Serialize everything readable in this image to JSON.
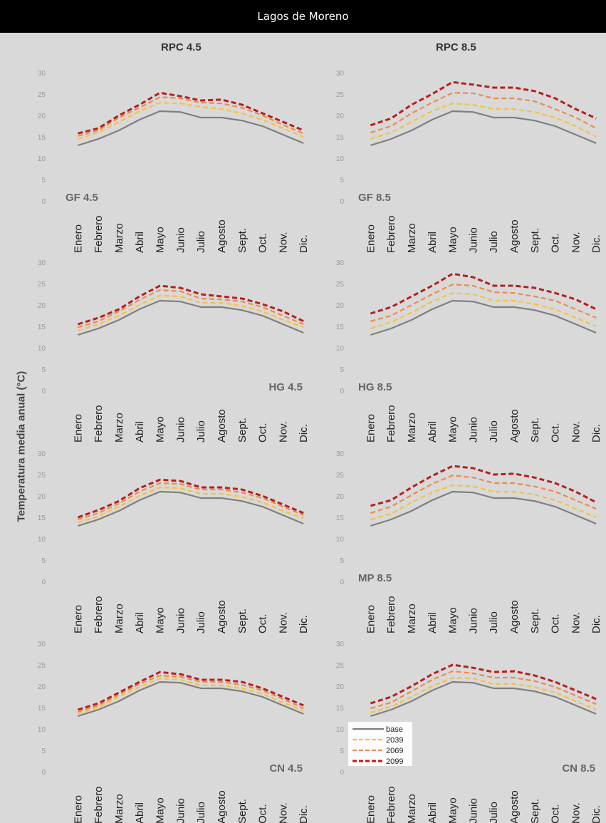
{
  "header": {
    "title": "Lagos de Moreno"
  },
  "columns": [
    "RPC 4.5",
    "RPC 8.5"
  ],
  "y_axis_label": "Temperatura media anual (°C)",
  "colors": {
    "base": "#7f7f7f",
    "2039": "#f5c242",
    "2069": "#ef8a4c",
    "2099": "#b81e1e"
  },
  "chart_data": [
    {
      "type": "line",
      "panel_label": "GF 4.5",
      "label_position": "left",
      "ylim": [
        0,
        30
      ],
      "yticks": [
        0,
        5,
        10,
        15,
        20,
        25,
        30
      ],
      "categories": [
        "Enero",
        "Febrero",
        "Marzo",
        "Abril",
        "Mayo",
        "Junio",
        "Julio",
        "Agosto",
        "Sept.",
        "Oct.",
        "Nov.",
        "Dic."
      ],
      "series": [
        {
          "name": "base",
          "values": [
            13,
            14.5,
            16.5,
            19,
            21,
            20.8,
            19.5,
            19.5,
            18.8,
            17.5,
            15.5,
            13.5
          ]
        },
        {
          "name": "2039",
          "values": [
            14.5,
            16,
            18.5,
            21,
            23,
            22.8,
            22,
            21.5,
            20.5,
            19,
            17,
            15
          ]
        },
        {
          "name": "2069",
          "values": [
            15.2,
            16.5,
            19.5,
            21.8,
            24.3,
            24,
            23,
            22.8,
            21.8,
            20,
            17.8,
            15.8
          ]
        },
        {
          "name": "2099",
          "values": [
            15.8,
            17,
            20,
            22.5,
            25.3,
            24.5,
            23.5,
            23.7,
            22.5,
            20.5,
            18.5,
            16.5
          ]
        }
      ]
    },
    {
      "type": "line",
      "panel_label": "GF 8.5",
      "label_position": "left",
      "ylim": [
        0,
        30
      ],
      "yticks": [
        0,
        5,
        10,
        15,
        20,
        25,
        30
      ],
      "categories": [
        "Enero",
        "Febrero",
        "Marzo",
        "Abril",
        "Mayo",
        "Junio",
        "Julio",
        "Agosto",
        "Sept.",
        "Oct.",
        "Nov.",
        "Dic."
      ],
      "series": [
        {
          "name": "base",
          "values": [
            13,
            14.5,
            16.5,
            19,
            21,
            20.8,
            19.5,
            19.5,
            18.8,
            17.5,
            15.5,
            13.5
          ]
        },
        {
          "name": "2039",
          "values": [
            14.5,
            16,
            18.5,
            21,
            22.8,
            22.5,
            21.5,
            21.5,
            20.8,
            19.5,
            17.5,
            15
          ]
        },
        {
          "name": "2069",
          "values": [
            16,
            17.5,
            20.5,
            23,
            25.3,
            25.2,
            24,
            24,
            23.3,
            21.5,
            19.5,
            17
          ]
        },
        {
          "name": "2099",
          "values": [
            17.7,
            19.3,
            22.5,
            25,
            27.8,
            27.2,
            26.5,
            26.5,
            25.7,
            24,
            21.5,
            19.3
          ]
        }
      ]
    },
    {
      "type": "line",
      "panel_label": "HG 4.5",
      "label_position": "right",
      "ylim": [
        0,
        30
      ],
      "yticks": [
        0,
        5,
        10,
        15,
        20,
        25,
        30
      ],
      "categories": [
        "Enero",
        "Febrero",
        "Marzo",
        "Abril",
        "Mayo",
        "Junio",
        "Julio",
        "Agosto",
        "Sept.",
        "Oct.",
        "Nov.",
        "Dic."
      ],
      "series": [
        {
          "name": "base",
          "values": [
            13,
            14.5,
            16.5,
            19,
            21,
            20.8,
            19.5,
            19.5,
            18.8,
            17.5,
            15.5,
            13.5
          ]
        },
        {
          "name": "2039",
          "values": [
            14,
            15.5,
            17.5,
            20,
            22.2,
            22,
            20.5,
            20.5,
            19.8,
            18.5,
            16.5,
            14.8
          ]
        },
        {
          "name": "2069",
          "values": [
            14.8,
            16.2,
            18.5,
            21.2,
            23.5,
            23.2,
            21.5,
            21.3,
            20.8,
            19.5,
            17.5,
            15.5
          ]
        },
        {
          "name": "2099",
          "values": [
            15.5,
            17,
            19,
            22,
            24.5,
            24,
            22.5,
            22,
            21.5,
            20.2,
            18.5,
            16.2
          ]
        }
      ]
    },
    {
      "type": "line",
      "panel_label": "HG 8.5",
      "label_position": "left",
      "ylim": [
        0,
        30
      ],
      "yticks": [
        0,
        5,
        10,
        15,
        20,
        25,
        30
      ],
      "categories": [
        "Enero",
        "Febrero",
        "Marzo",
        "Abril",
        "Mayo",
        "Junio",
        "Julio",
        "Agosto",
        "Sept.",
        "Oct.",
        "Nov.",
        "Dic."
      ],
      "series": [
        {
          "name": "base",
          "values": [
            13,
            14.5,
            16.5,
            19,
            21,
            20.8,
            19.5,
            19.5,
            18.8,
            17.5,
            15.5,
            13.5
          ]
        },
        {
          "name": "2039",
          "values": [
            14.5,
            16,
            18.2,
            20.8,
            22.8,
            22.5,
            21,
            21,
            20.2,
            19,
            17,
            15
          ]
        },
        {
          "name": "2069",
          "values": [
            16.2,
            17.5,
            20,
            22.5,
            24.8,
            24.5,
            23,
            22.8,
            22,
            21,
            19,
            17
          ]
        },
        {
          "name": "2099",
          "values": [
            18,
            19.5,
            22,
            24.5,
            27.3,
            26.5,
            24.5,
            24.5,
            24,
            22.8,
            21.3,
            19
          ]
        }
      ]
    },
    {
      "type": "line",
      "panel_label": "",
      "label_position": "left",
      "ylim": [
        0,
        30
      ],
      "yticks": [
        0,
        5,
        10,
        15,
        20,
        25,
        30
      ],
      "categories": [
        "Enero",
        "Febrero",
        "Marzo",
        "Abril",
        "Mayo",
        "Junio",
        "Julio",
        "Agosto",
        "Sept.",
        "Oct.",
        "Nov.",
        "Dic."
      ],
      "series": [
        {
          "name": "base",
          "values": [
            13,
            14.5,
            16.5,
            19,
            21,
            20.8,
            19.5,
            19.5,
            18.8,
            17.5,
            15.5,
            13.5
          ]
        },
        {
          "name": "2039",
          "values": [
            13.8,
            15.2,
            17.5,
            20,
            22,
            21.8,
            20.5,
            20.5,
            19.8,
            18.5,
            16.5,
            14.8
          ]
        },
        {
          "name": "2069",
          "values": [
            14.5,
            16,
            18.2,
            21,
            23,
            22.8,
            21.5,
            21.5,
            20.8,
            19.5,
            17.5,
            15.5
          ]
        },
        {
          "name": "2099",
          "values": [
            15,
            16.7,
            18.8,
            21.8,
            23.8,
            23.5,
            22,
            22,
            21.5,
            20,
            18,
            16
          ]
        }
      ]
    },
    {
      "type": "line",
      "panel_label": "MP 8.5",
      "label_position": "left",
      "ylim": [
        0,
        30
      ],
      "yticks": [
        0,
        5,
        10,
        15,
        20,
        25,
        30
      ],
      "categories": [
        "Enero",
        "Febrero",
        "Marzo",
        "Abril",
        "Mayo",
        "Junio",
        "Julio",
        "Agosto",
        "Sept.",
        "Oct.",
        "Nov.",
        "Dic."
      ],
      "series": [
        {
          "name": "base",
          "values": [
            13,
            14.5,
            16.5,
            19,
            21,
            20.8,
            19.5,
            19.5,
            18.8,
            17.5,
            15.5,
            13.5
          ]
        },
        {
          "name": "2039",
          "values": [
            14.5,
            15.8,
            18.5,
            20.8,
            22.5,
            22.2,
            21,
            21,
            20.3,
            19,
            17,
            15
          ]
        },
        {
          "name": "2069",
          "values": [
            16,
            17.5,
            20.2,
            22.8,
            24.8,
            24.3,
            23,
            23,
            22.2,
            21,
            19,
            17
          ]
        },
        {
          "name": "2099",
          "values": [
            17.7,
            19,
            22,
            24.7,
            27,
            26.5,
            25,
            25.2,
            24.3,
            23,
            21,
            18.5
          ]
        }
      ]
    },
    {
      "type": "line",
      "panel_label": "CN 4.5",
      "label_position": "right",
      "ylim": [
        0,
        30
      ],
      "yticks": [
        0,
        5,
        10,
        15,
        20,
        25,
        30
      ],
      "categories": [
        "Enero",
        "Febrero",
        "Marzo",
        "Abril",
        "Mayo",
        "Junio",
        "Julio",
        "Agosto",
        "Sept.",
        "Oct.",
        "Nov.",
        "Dic."
      ],
      "series": [
        {
          "name": "base",
          "values": [
            13,
            14.5,
            16.5,
            19,
            21,
            20.8,
            19.5,
            19.5,
            18.8,
            17.5,
            15.5,
            13.5
          ]
        },
        {
          "name": "2039",
          "values": [
            13.5,
            15,
            17.5,
            19.8,
            21.8,
            21.5,
            20.2,
            20.2,
            19.5,
            18.2,
            16.2,
            14.2
          ]
        },
        {
          "name": "2069",
          "values": [
            14,
            15.5,
            18,
            20.5,
            22.5,
            22.2,
            21,
            21,
            20.3,
            19,
            17,
            14.8
          ]
        },
        {
          "name": "2099",
          "values": [
            14.5,
            16,
            18.5,
            21,
            23.3,
            22.8,
            21.5,
            21.5,
            21,
            19.5,
            17.5,
            15.5
          ]
        }
      ]
    },
    {
      "type": "line",
      "panel_label": "CN 8.5",
      "label_position": "right",
      "ylim": [
        0,
        30
      ],
      "yticks": [
        0,
        5,
        10,
        15,
        20,
        25,
        30
      ],
      "categories": [
        "Enero",
        "Febrero",
        "Marzo",
        "Abril",
        "Mayo",
        "Junio",
        "Julio",
        "Agosto",
        "Sept.",
        "Oct.",
        "Nov.",
        "Dic."
      ],
      "series": [
        {
          "name": "base",
          "values": [
            13,
            14.5,
            16.5,
            19,
            21,
            20.8,
            19.5,
            19.5,
            18.8,
            17.5,
            15.5,
            13.5
          ]
        },
        {
          "name": "2039",
          "values": [
            13.8,
            15.2,
            17.5,
            20,
            22,
            21.8,
            20.5,
            20.5,
            19.8,
            18.5,
            16.5,
            14.5
          ]
        },
        {
          "name": "2069",
          "values": [
            14.8,
            16.2,
            18.8,
            21.5,
            23.5,
            23,
            22,
            22,
            21.2,
            19.8,
            17.8,
            15.8
          ]
        },
        {
          "name": "2099",
          "values": [
            16,
            17.5,
            20,
            22.8,
            25,
            24.3,
            23.3,
            23.5,
            22.5,
            21,
            19,
            17
          ]
        }
      ]
    }
  ],
  "legend": [
    "base",
    "2039",
    "2069",
    "2099"
  ]
}
